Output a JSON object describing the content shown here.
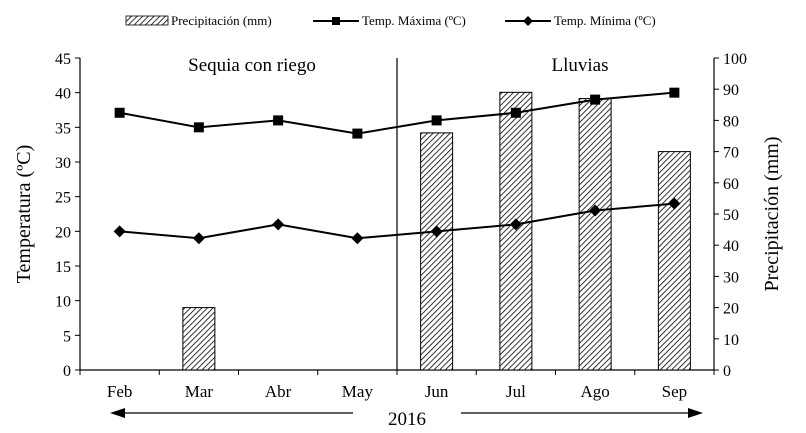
{
  "chart_data": {
    "type": "bar+line",
    "categories": [
      "Feb",
      "Mar",
      "Abr",
      "May",
      "Jun",
      "Jul",
      "Ago",
      "Sep"
    ],
    "series": [
      {
        "name": "Precipitación (mm)",
        "kind": "bar",
        "axis": "right",
        "values": [
          0,
          20,
          0,
          0,
          76,
          89,
          87,
          70
        ]
      },
      {
        "name": "Temp. Máxima (ºC)",
        "kind": "line",
        "marker": "square",
        "axis": "left",
        "values": [
          37.1,
          35,
          36,
          34.1,
          36,
          37.1,
          39,
          40
        ]
      },
      {
        "name": "Temp. Mínima (ºC)",
        "kind": "line",
        "marker": "diamond",
        "axis": "left",
        "values": [
          20,
          19,
          21,
          19,
          20,
          21,
          23,
          24
        ]
      }
    ],
    "ylabel": "Temperatura (ºC)",
    "y2label": "Precipitación (mm)",
    "xlabel": "2016",
    "ylim": [
      0,
      45
    ],
    "ystep": 5,
    "y2lim": [
      0,
      100
    ],
    "y2step": 10,
    "periods": [
      {
        "label": "Sequia con riego",
        "from": "Feb",
        "to": "May"
      },
      {
        "label": "Lluvias",
        "from": "Jun",
        "to": "Sep"
      }
    ],
    "divider_between": [
      "May",
      "Jun"
    ],
    "legend_position": "top",
    "grid": false,
    "colors": {
      "line": "#000000",
      "bar_hatch": "#000000",
      "background": "#ffffff"
    }
  }
}
